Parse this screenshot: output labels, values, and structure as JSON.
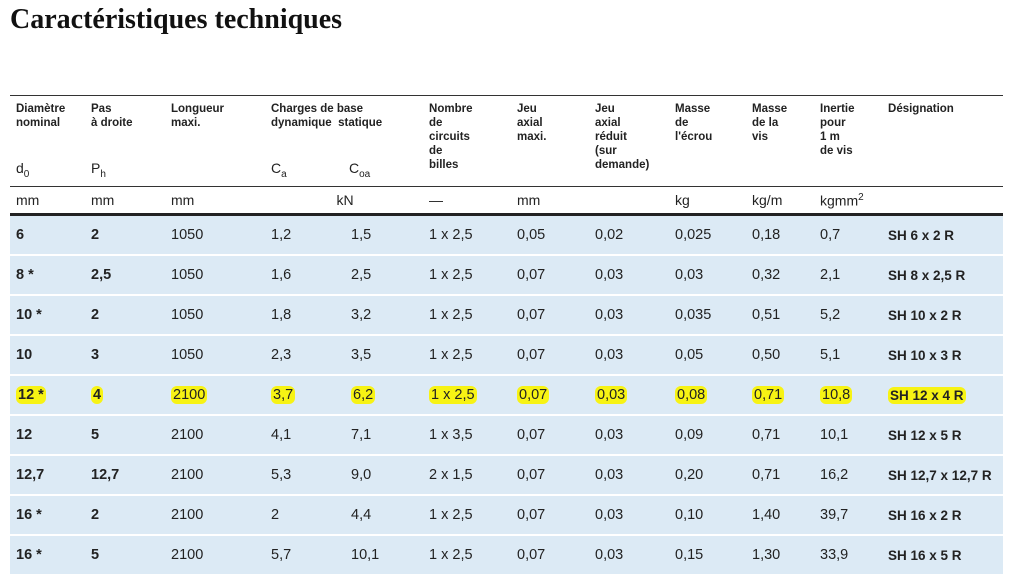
{
  "title": "Caractéristiques techniques",
  "headers": {
    "d0": {
      "label": "Diamètre\nnominal",
      "symbol": "d",
      "symbol_sub": "0"
    },
    "ph": {
      "label": "Pas\nà droite",
      "symbol": "P",
      "symbol_sub": "h"
    },
    "length": {
      "label": "Longueur\nmaxi."
    },
    "charges": {
      "label": "Charges de base",
      "dyn": "dynamique",
      "stat": "statique",
      "sym_ca": "C",
      "sym_ca_sub": "a",
      "sym_coa": "C",
      "sym_coa_sub": "oa"
    },
    "circuits": {
      "label": "Nombre\nde\ncircuits\nde\nbilles"
    },
    "jeu_axial": {
      "label": "Jeu\naxial\nmaxi."
    },
    "jeu_reduit": {
      "label": "Jeu\naxial\nréduit\n(sur\ndemande)"
    },
    "masse_ecrou": {
      "label": "Masse\nde\nl'écrou"
    },
    "masse_vis": {
      "label": "Masse\nde la\nvis"
    },
    "inertie": {
      "label": "Inertie\npour\n1 m\nde vis"
    },
    "designation": {
      "label": "Désignation"
    }
  },
  "units": {
    "d0": "mm",
    "ph": "mm",
    "length": "mm",
    "kn": "kN",
    "circuits": "—",
    "jeu_axial": "mm",
    "masse_ecrou": "kg",
    "masse_vis": "kg/m",
    "inertie": "kgmm",
    "inertie_sup": "2"
  },
  "rows": [
    {
      "d0": "6",
      "ph": "2",
      "length": "1050",
      "ca": "1,2",
      "coa": "1,5",
      "circuits": "1 x 2,5",
      "jeu": "0,05",
      "jeu_reduit": "0,02",
      "m_ecrou": "0,025",
      "m_vis": "0,18",
      "inertie": "0,7",
      "designation": "SH 6 x 2 R",
      "highlighted": false
    },
    {
      "d0": "8 *",
      "ph": "2,5",
      "length": "1050",
      "ca": "1,6",
      "coa": "2,5",
      "circuits": "1 x 2,5",
      "jeu": "0,07",
      "jeu_reduit": "0,03",
      "m_ecrou": "0,03",
      "m_vis": "0,32",
      "inertie": "2,1",
      "designation": "SH 8 x 2,5 R",
      "highlighted": false
    },
    {
      "d0": "10 *",
      "ph": "2",
      "length": "1050",
      "ca": "1,8",
      "coa": "3,2",
      "circuits": "1 x 2,5",
      "jeu": "0,07",
      "jeu_reduit": "0,03",
      "m_ecrou": "0,035",
      "m_vis": "0,51",
      "inertie": "5,2",
      "designation": "SH 10 x 2 R",
      "highlighted": false
    },
    {
      "d0": "10",
      "ph": "3",
      "length": "1050",
      "ca": "2,3",
      "coa": "3,5",
      "circuits": "1 x 2,5",
      "jeu": "0,07",
      "jeu_reduit": "0,03",
      "m_ecrou": "0,05",
      "m_vis": "0,50",
      "inertie": "5,1",
      "designation": "SH 10 x 3 R",
      "highlighted": false
    },
    {
      "d0": "12 *",
      "ph": "4",
      "length": "2100",
      "ca": "3,7",
      "coa": "6,2",
      "circuits": "1 x 2,5",
      "jeu": "0,07",
      "jeu_reduit": "0,03",
      "m_ecrou": "0,08",
      "m_vis": "0,71",
      "inertie": "10,8",
      "designation": "SH 12 x 4 R",
      "highlighted": true
    },
    {
      "d0": "12",
      "ph": "5",
      "length": "2100",
      "ca": "4,1",
      "coa": "7,1",
      "circuits": "1 x 3,5",
      "jeu": "0,07",
      "jeu_reduit": "0,03",
      "m_ecrou": "0,09",
      "m_vis": "0,71",
      "inertie": "10,1",
      "designation": "SH 12 x 5 R",
      "highlighted": false
    },
    {
      "d0": "12,7",
      "ph": "12,7",
      "length": "2100",
      "ca": "5,3",
      "coa": "9,0",
      "circuits": "2 x 1,5",
      "jeu": "0,07",
      "jeu_reduit": "0,03",
      "m_ecrou": "0,20",
      "m_vis": "0,71",
      "inertie": "16,2",
      "designation": "SH 12,7 x 12,7 R",
      "highlighted": false
    },
    {
      "d0": "16 *",
      "ph": "2",
      "length": "2100",
      "ca": "2",
      "coa": "4,4",
      "circuits": "1 x 2,5",
      "jeu": "0,07",
      "jeu_reduit": "0,03",
      "m_ecrou": "0,10",
      "m_vis": "1,40",
      "inertie": "39,7",
      "designation": "SH 16 x 2 R",
      "highlighted": false
    },
    {
      "d0": "16 *",
      "ph": "5",
      "length": "2100",
      "ca": "5,7",
      "coa": "10,1",
      "circuits": "1 x 2,5",
      "jeu": "0,07",
      "jeu_reduit": "0,03",
      "m_ecrou": "0,15",
      "m_vis": "1,30",
      "inertie": "33,9",
      "designation": "SH 16 x 5 R",
      "highlighted": false
    }
  ],
  "colors": {
    "row_bg": "#dceaf5",
    "highlight": "#f7f314"
  }
}
